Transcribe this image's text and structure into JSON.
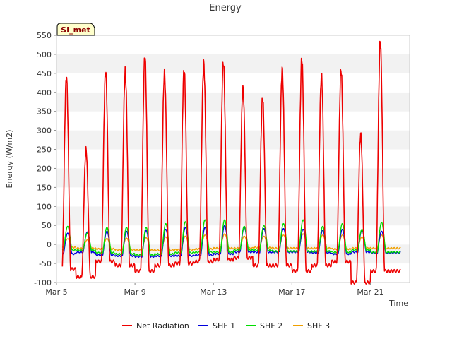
{
  "chart_data": {
    "type": "line",
    "title": "Energy",
    "xlabel": "Time",
    "ylabel": "Energy (W/m2)",
    "badge": "SI_met",
    "ylim": [
      -100,
      550
    ],
    "xlim": [
      "2024-03-05",
      "2024-03-23"
    ],
    "yticks": [
      -100,
      -50,
      0,
      50,
      100,
      150,
      200,
      250,
      300,
      350,
      400,
      450,
      500,
      550
    ],
    "xticks": [
      {
        "date": "2024-03-05",
        "label": "Mar 5"
      },
      {
        "date": "2024-03-09",
        "label": "Mar 9"
      },
      {
        "date": "2024-03-13",
        "label": "Mar 13"
      },
      {
        "date": "2024-03-17",
        "label": "Mar 17"
      },
      {
        "date": "2024-03-21",
        "label": "Mar 21"
      }
    ],
    "grid": "horizontal bands",
    "legend_position": "bottom",
    "days": [
      "Mar 5",
      "Mar 6",
      "Mar 7",
      "Mar 8",
      "Mar 9",
      "Mar 10",
      "Mar 11",
      "Mar 12",
      "Mar 13",
      "Mar 14",
      "Mar 15",
      "Mar 16",
      "Mar 17",
      "Mar 18",
      "Mar 19",
      "Mar 20",
      "Mar 21",
      "Mar 22"
    ],
    "series": [
      {
        "name": "Net Radiation",
        "color": "#ee0000",
        "daily_peak": [
          440,
          250,
          455,
          455,
          495,
          450,
          460,
          475,
          480,
          410,
          385,
          460,
          490,
          445,
          460,
          290,
          535,
          null
        ],
        "night_min": [
          -65,
          -85,
          -45,
          -55,
          -70,
          -55,
          -50,
          -45,
          -40,
          -35,
          -55,
          -55,
          -70,
          -55,
          -45,
          -100,
          -70,
          -70
        ]
      },
      {
        "name": "SHF 1",
        "color": "#0000dd",
        "daily_peak": [
          30,
          33,
          35,
          35,
          37,
          40,
          45,
          45,
          50,
          45,
          42,
          42,
          40,
          38,
          40,
          38,
          35,
          null
        ],
        "night_min": [
          -25,
          -20,
          -28,
          -30,
          -32,
          -30,
          -30,
          -28,
          -25,
          -20,
          -20,
          -20,
          -20,
          -22,
          -25,
          -20,
          -22,
          -22
        ]
      },
      {
        "name": "SHF 2",
        "color": "#00dd00",
        "daily_peak": [
          48,
          30,
          45,
          45,
          45,
          55,
          60,
          65,
          65,
          48,
          50,
          55,
          65,
          48,
          55,
          40,
          58,
          null
        ],
        "night_min": [
          -15,
          -15,
          -22,
          -25,
          -28,
          -25,
          -22,
          -20,
          -20,
          -15,
          -15,
          -18,
          -18,
          -18,
          -20,
          -15,
          -20,
          -20
        ]
      },
      {
        "name": "SHF 3",
        "color": "#f0a000",
        "daily_peak": [
          15,
          12,
          16,
          17,
          18,
          20,
          22,
          25,
          28,
          22,
          22,
          25,
          28,
          25,
          25,
          20,
          25,
          null
        ],
        "night_min": [
          -8,
          -10,
          -12,
          -14,
          -15,
          -15,
          -14,
          -12,
          -10,
          -10,
          -8,
          -10,
          -10,
          -10,
          -12,
          -10,
          -10,
          -10
        ]
      }
    ]
  }
}
